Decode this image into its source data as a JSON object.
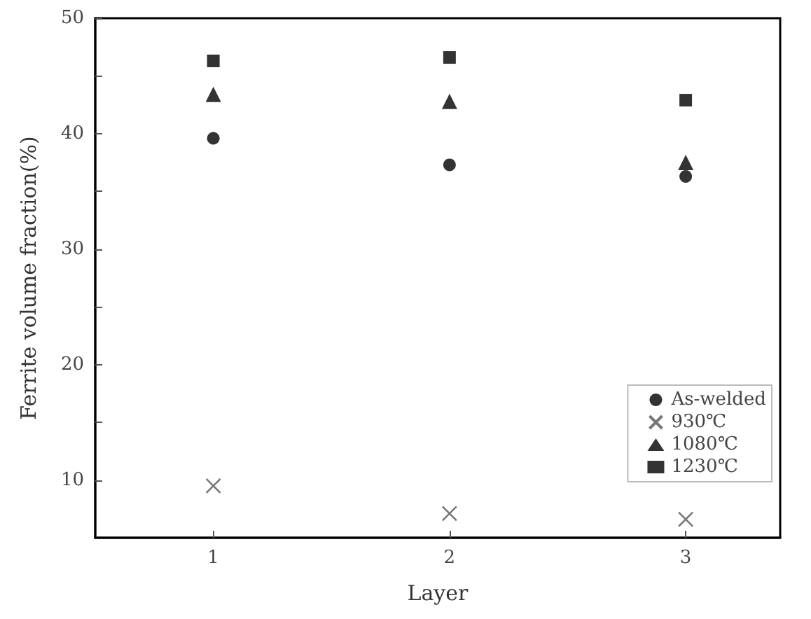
{
  "chart_data": {
    "type": "scatter",
    "xlabel": "Layer",
    "ylabel": "Ferrite volume fraction(%)",
    "x": [
      1,
      2,
      3
    ],
    "series": [
      {
        "name": "As-welded",
        "color": "#000000",
        "marker": "circle",
        "values": [
          39.6,
          37.3,
          36.3
        ]
      },
      {
        "name": "930℃",
        "color": "#555555",
        "marker": "cross",
        "values": [
          9.5,
          7.1,
          6.6
        ]
      },
      {
        "name": "1080℃",
        "color": "#000000",
        "marker": "triangle",
        "values": [
          43.4,
          42.8,
          37.5
        ]
      },
      {
        "name": "1230℃",
        "color": "#000000",
        "marker": "square",
        "values": [
          46.3,
          46.6,
          42.9
        ]
      }
    ],
    "xlim": [
      0.5,
      3.4
    ],
    "xticks": [
      1,
      2,
      3
    ],
    "ylim": [
      5,
      50
    ],
    "yticks": [
      10,
      {
        "value": 15,
        "label": null
      },
      20,
      {
        "value": 25,
        "label": null
      },
      30,
      {
        "value": 35,
        "label": null
      },
      40,
      {
        "value": 45,
        "label": null
      },
      50
    ],
    "grid": false,
    "legend": "bottom right"
  }
}
